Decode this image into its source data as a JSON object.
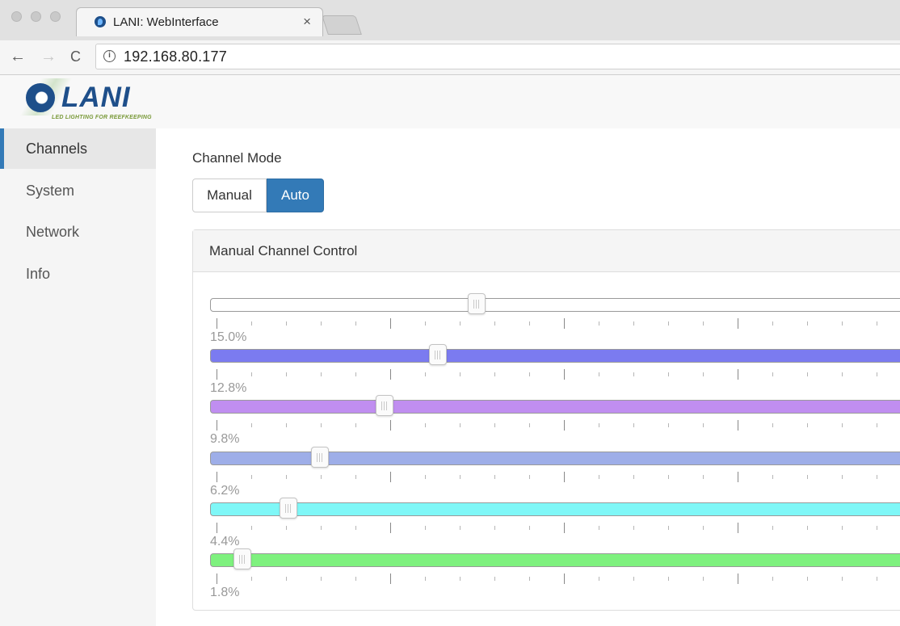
{
  "browser": {
    "tab_title": "LANI: WebInterface",
    "tab_close": "×",
    "nav_back": "←",
    "nav_forward": "→",
    "nav_reload": "C",
    "url": "192.168.80.177"
  },
  "header": {
    "logo_text": "LANI",
    "logo_tagline": "LED LIGHTING FOR REEFKEEPING"
  },
  "sidebar": {
    "items": [
      {
        "label": "Channels",
        "active": true
      },
      {
        "label": "System",
        "active": false
      },
      {
        "label": "Network",
        "active": false
      },
      {
        "label": "Info",
        "active": false
      }
    ]
  },
  "main": {
    "mode_label": "Channel Mode",
    "mode_buttons": {
      "manual": "Manual",
      "auto": "Auto",
      "selected": "Auto"
    },
    "panel_title": "Manual Channel Control",
    "channels": [
      {
        "value_label": "15.0%",
        "value": 15.0,
        "color": "#ffffff"
      },
      {
        "value_label": "12.8%",
        "value": 12.8,
        "color": "#7b7bf0"
      },
      {
        "value_label": "9.8%",
        "value": 9.8,
        "color": "#c08ef0"
      },
      {
        "value_label": "6.2%",
        "value": 6.2,
        "color": "#9eaee8"
      },
      {
        "value_label": "4.4%",
        "value": 4.4,
        "color": "#7ff7f7"
      },
      {
        "value_label": "1.8%",
        "value": 1.8,
        "color": "#7ef17e"
      }
    ]
  },
  "colors": {
    "accent": "#337ab7",
    "sidebar_bg": "#f5f5f5"
  }
}
